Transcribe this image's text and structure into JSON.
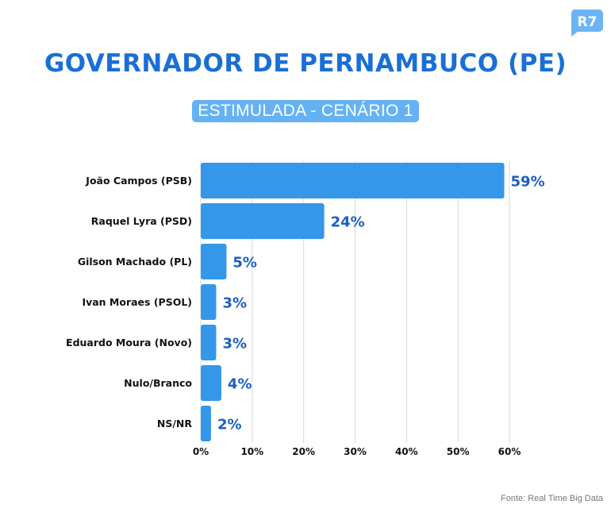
{
  "brand": {
    "logo_text": "R7",
    "logo_color": "#6cb4f5"
  },
  "header": {
    "title": "GOVERNADOR DE PERNAMBUCO (PE)",
    "subtitle": "ESTIMULADA - CENÁRIO 1"
  },
  "source": "Fonte: Real Time Big Data",
  "colors": {
    "bar": "#3597ea",
    "value_label": "#1a5fc2",
    "title": "#1a6fd6",
    "grid": "#d8d8d8",
    "text": "#111111"
  },
  "chart_data": {
    "type": "bar",
    "orientation": "horizontal",
    "title": "GOVERNADOR DE PERNAMBUCO (PE)",
    "subtitle": "ESTIMULADA - CENÁRIO 1",
    "categories": [
      "João Campos (PSB)",
      "Raquel Lyra (PSD)",
      "Gilson Machado (PL)",
      "Ivan Moraes (PSOL)",
      "Eduardo Moura (Novo)",
      "Nulo/Branco",
      "NS/NR"
    ],
    "values": [
      59,
      24,
      5,
      3,
      3,
      4,
      2
    ],
    "value_labels": [
      "59%",
      "24%",
      "5%",
      "3%",
      "3%",
      "4%",
      "2%"
    ],
    "xlabel": "",
    "ylabel": "",
    "xlim": [
      0,
      60
    ],
    "xticks": [
      0,
      10,
      20,
      30,
      40,
      50,
      60
    ],
    "xtick_labels": [
      "0%",
      "10%",
      "20%",
      "30%",
      "40%",
      "50%",
      "60%"
    ],
    "grid": "vertical",
    "legend": "none",
    "source": "Fonte: Real Time Big Data"
  }
}
